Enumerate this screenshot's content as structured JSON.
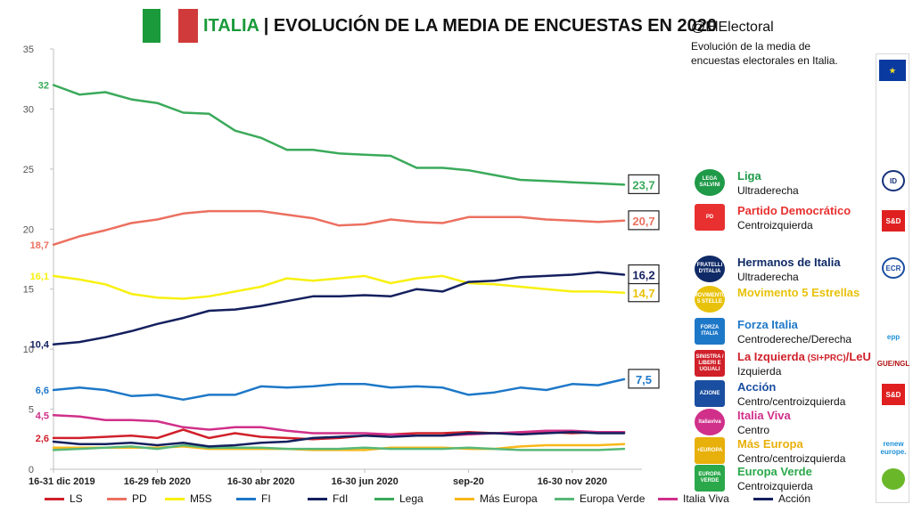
{
  "header": {
    "country": "ITALIA",
    "title": "| EVOLUCIÓN DE LA MEDIA DE ENCUESTAS EN 2020",
    "flag_colors": [
      "#1a9a3a",
      "#ffffff",
      "#d03a3a"
    ]
  },
  "source": {
    "handle": "@ElElectoral",
    "description": "Evolución de la media de encuestas electorales en Italia."
  },
  "parties": [
    {
      "name": "Liga",
      "ideology": "Ultraderecha",
      "color": "#1f9a48",
      "logo_text": "LEGA SALVINI",
      "logo_icon": "lega-logo-icon"
    },
    {
      "name": "Partido Democrático",
      "ideology": "Centroizquierda",
      "color": "#e83030",
      "logo_text": "PD",
      "logo_icon": "pd-logo-icon"
    },
    {
      "name": "Hermanos de Italia",
      "ideology": "Ultraderecha",
      "color": "#0f2a66",
      "logo_text": "FRATELLI D'ITALIA",
      "logo_icon": "fdi-logo-icon"
    },
    {
      "name": "Movimento 5 Estrellas",
      "ideology": "",
      "color": "#e8c20a",
      "logo_text": "MOVIMENTO 5 STELLE",
      "logo_icon": "m5s-logo-icon"
    },
    {
      "name": "Forza Italia",
      "ideology": "Centrodereche/Derecha",
      "color": "#1e78c8",
      "logo_text": "FORZA ITALIA",
      "logo_icon": "fi-logo-icon"
    },
    {
      "name": "La Izquierda",
      "name_suffix_small": "(SI+PRC)",
      "name_suffix": "/LeU",
      "ideology": "Izquierda",
      "color": "#d0202a",
      "logo_text": "SINISTRA / LIBERI E UGUALI",
      "logo_icon": "la-izquierda-logo-icon"
    },
    {
      "name": "Acción",
      "ideology": "Centro/centroizquierda",
      "color": "#1a4ea0",
      "logo_text": "AZIONE",
      "logo_icon": "azione-logo-icon"
    },
    {
      "name": "Italia Viva",
      "ideology": "Centro",
      "color": "#d0308a",
      "logo_text": "italiaviva",
      "logo_icon": "italia-viva-logo-icon"
    },
    {
      "name": "Más Europa",
      "ideology": "Centro/centroizquierda",
      "color": "#e8b00a",
      "logo_text": "+EUROPA",
      "logo_icon": "mas-europa-logo-icon"
    },
    {
      "name": "Europa Verde",
      "ideology": "Centroizquierda",
      "color": "#2aa84a",
      "logo_text": "EUROPA VERDE",
      "logo_icon": "europa-verde-logo-icon"
    }
  ],
  "eu_groups": [
    {
      "label": "EU",
      "color": "#0a3aa0",
      "icon": "eu-flag-icon"
    },
    {
      "label": "ID",
      "color": "#14317a",
      "icon": "id-group-icon"
    },
    {
      "label": "S&D",
      "color": "#e02020",
      "icon": "sd-group-icon"
    },
    {
      "label": "ECR",
      "color": "#1a4ea0",
      "icon": "ecr-group-icon"
    },
    {
      "label": "epp",
      "color": "#1e90d8",
      "icon": "epp-group-icon"
    },
    {
      "label": "GUE/NGL",
      "color": "#b01010",
      "icon": "gue-ngl-group-icon"
    },
    {
      "label": "S&D",
      "color": "#e02020",
      "icon": "sd-group-icon"
    },
    {
      "label": "renew europe.",
      "color": "#1e90d8",
      "icon": "renew-group-icon"
    },
    {
      "label": "",
      "color": "#6ab82a",
      "icon": "greens-group-icon"
    }
  ],
  "chart_data": {
    "type": "line",
    "title": "EVOLUCIÓN DE LA MEDIA DE ENCUESTAS EN 2020",
    "xlabel": "",
    "ylabel": "",
    "ylim": [
      0,
      35
    ],
    "yticks": [
      0,
      5,
      10,
      15,
      20,
      25,
      30,
      35
    ],
    "grid": false,
    "legend_position": "bottom",
    "x": [
      "16-31 dic 2019",
      "1-15 ene 2020",
      "16-31 ene 2020",
      "1-15 feb 2020",
      "16-29 feb 2020",
      "1-15 mar 2020",
      "16-31 mar 2020",
      "1-15 abr 2020",
      "16-30 abr 2020",
      "1-15 may 2020",
      "16-31 may 2020",
      "1-15 jun 2020",
      "16-30 jun 2020",
      "1-15 jul 2020",
      "16-31 jul 2020",
      "ago-20",
      "sep-20",
      "1-15 oct 2020",
      "16-31 oct 2020",
      "1-15 nov 2020",
      "16-30 nov 2020",
      "1-15 dic 2020",
      "16-31 dic 2020"
    ],
    "xtick_labels": [
      {
        "index": 0,
        "label": "16-31 dic 2019"
      },
      {
        "index": 4,
        "label": "16-29 feb 2020"
      },
      {
        "index": 8,
        "label": "16-30 abr 2020"
      },
      {
        "index": 12,
        "label": "16-30 jun 2020"
      },
      {
        "index": 16,
        "label": "sep-20"
      },
      {
        "index": 20,
        "label": "16-30 nov 2020"
      }
    ],
    "series": [
      {
        "name": "LS",
        "color": "#d0202a",
        "values": [
          2.6,
          2.6,
          2.7,
          2.8,
          2.6,
          3.3,
          2.6,
          3.0,
          2.7,
          2.6,
          2.5,
          2.6,
          2.8,
          2.9,
          3.0,
          3.0,
          3.1,
          3.0,
          3.0,
          3.1,
          3.0,
          3.1,
          3.1
        ],
        "start_label": "2,6",
        "end_label": ""
      },
      {
        "name": "PD",
        "color": "#ec7060",
        "values": [
          18.7,
          19.4,
          19.9,
          20.5,
          20.8,
          21.3,
          21.5,
          21.5,
          21.5,
          21.2,
          20.9,
          20.3,
          20.4,
          20.8,
          20.6,
          20.5,
          21.0,
          21.0,
          21.0,
          20.8,
          20.7,
          20.6,
          20.7
        ],
        "start_label": "18,7",
        "end_label": "20,7"
      },
      {
        "name": "M5S",
        "color": "#f8f010",
        "values": [
          16.1,
          15.8,
          15.4,
          14.6,
          14.3,
          14.2,
          14.4,
          14.8,
          15.2,
          15.9,
          15.7,
          15.9,
          16.1,
          15.5,
          15.9,
          16.1,
          15.5,
          15.4,
          15.2,
          15.0,
          14.8,
          14.8,
          14.7
        ],
        "start_label": "16,1",
        "end_label": "14,7"
      },
      {
        "name": "FI",
        "color": "#1e78c8",
        "values": [
          6.6,
          6.8,
          6.6,
          6.1,
          6.2,
          5.8,
          6.2,
          6.2,
          6.9,
          6.8,
          6.9,
          7.1,
          7.1,
          6.8,
          6.9,
          6.8,
          6.2,
          6.4,
          6.8,
          6.6,
          7.1,
          7.0,
          7.5
        ],
        "start_label": "6,6",
        "end_label": "7,5"
      },
      {
        "name": "FdI",
        "color": "#14205e",
        "values": [
          10.4,
          10.6,
          11.0,
          11.5,
          12.1,
          12.6,
          13.2,
          13.3,
          13.6,
          14.0,
          14.4,
          14.4,
          14.5,
          14.4,
          15.0,
          14.8,
          15.6,
          15.7,
          16.0,
          16.1,
          16.2,
          16.4,
          16.2
        ],
        "start_label": "10,4",
        "end_label": "16,2"
      },
      {
        "name": "Lega",
        "color": "#3aaa5a",
        "values": [
          32.0,
          31.2,
          31.4,
          30.8,
          30.5,
          29.7,
          29.6,
          28.2,
          27.6,
          26.6,
          26.6,
          26.3,
          26.2,
          26.1,
          25.1,
          25.1,
          24.9,
          24.5,
          24.1,
          24.0,
          23.9,
          23.8,
          23.7
        ],
        "start_label": "32",
        "end_label": "23,7"
      },
      {
        "name": "Más Europa",
        "color": "#f8b81a",
        "values": [
          1.8,
          1.8,
          1.8,
          1.8,
          1.8,
          1.9,
          1.7,
          1.7,
          1.7,
          1.7,
          1.6,
          1.6,
          1.6,
          1.8,
          1.8,
          1.8,
          1.7,
          1.7,
          1.9,
          2.0,
          2.0,
          2.0,
          2.1
        ],
        "start_label": "",
        "end_label": ""
      },
      {
        "name": "Europa Verde",
        "color": "#58b878",
        "values": [
          1.6,
          1.7,
          1.8,
          1.9,
          1.7,
          2.0,
          1.8,
          1.8,
          1.8,
          1.7,
          1.7,
          1.7,
          1.8,
          1.7,
          1.7,
          1.7,
          1.8,
          1.7,
          1.6,
          1.6,
          1.6,
          1.6,
          1.7
        ],
        "start_label": "",
        "end_label": ""
      },
      {
        "name": "Italia Viva",
        "color": "#d0308a",
        "values": [
          4.5,
          4.4,
          4.1,
          4.1,
          4.0,
          3.5,
          3.3,
          3.5,
          3.5,
          3.2,
          3.0,
          3.0,
          3.0,
          2.9,
          2.8,
          2.8,
          2.9,
          3.0,
          3.1,
          3.2,
          3.2,
          3.1,
          3.1
        ],
        "start_label": "4,5",
        "end_label": ""
      },
      {
        "name": "Acción",
        "color": "#14205e",
        "values": [
          2.3,
          2.1,
          2.1,
          2.2,
          2.0,
          2.2,
          1.9,
          2.0,
          2.2,
          2.3,
          2.6,
          2.7,
          2.8,
          2.7,
          2.8,
          2.8,
          3.0,
          3.0,
          2.9,
          3.0,
          3.1,
          3.0,
          3.0
        ],
        "start_label": "",
        "end_label": ""
      }
    ]
  }
}
